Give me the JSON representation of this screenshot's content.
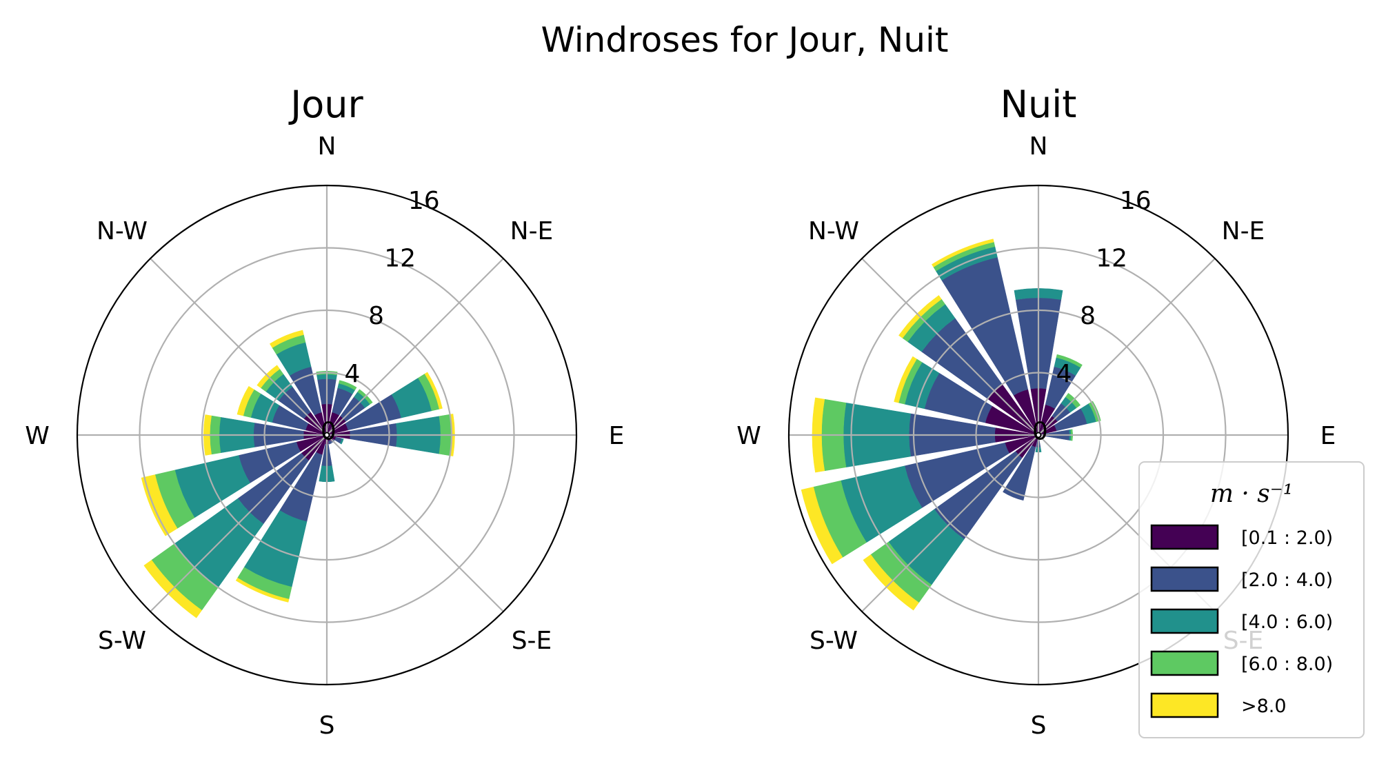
{
  "suptitle": "Windroses for Jour, Nuit",
  "palette": {
    "bins": [
      "#440154",
      "#3b528b",
      "#21918c",
      "#5ec962",
      "#fde725"
    ],
    "grid": "#b0b0b0",
    "frame": "#000000"
  },
  "legend": {
    "title": "m · s⁻¹",
    "entries": [
      "[0.1 : 2.0)",
      "[2.0 : 4.0)",
      "[4.0 : 6.0)",
      "[6.0 : 8.0)",
      ">8.0"
    ]
  },
  "chart_data": [
    {
      "type": "windrose",
      "title": "Jour",
      "direction_labels": [
        "N",
        "N-E",
        "E",
        "S-E",
        "S",
        "S-W",
        "W",
        "N-W"
      ],
      "r_ticks": [
        "0",
        "4",
        "8",
        "12",
        "16"
      ],
      "rlim": [
        0,
        16
      ],
      "directions_deg": [
        0,
        22.5,
        45,
        67.5,
        90,
        112.5,
        135,
        157.5,
        180,
        202.5,
        225,
        247.5,
        270,
        292.5,
        315,
        337.5
      ],
      "series": [
        {
          "name": "[0.1 : 2.0)",
          "values": [
            2.0,
            1.5,
            1.5,
            1.4,
            1.5,
            0.6,
            0.5,
            0.4,
            0.6,
            1.3,
            2.0,
            2.0,
            1.5,
            1.4,
            1.8,
            1.5
          ]
        },
        {
          "name": "[2.0 : 4.0)",
          "values": [
            1.6,
            1.6,
            1.5,
            3.5,
            3.0,
            0.4,
            0.1,
            0.2,
            1.4,
            4.4,
            5.0,
            3.8,
            3.2,
            2.2,
            2.0,
            3.0
          ]
        },
        {
          "name": "[4.0 : 6.0)",
          "values": [
            0.3,
            0.3,
            0.4,
            2.0,
            2.8,
            0.1,
            0.0,
            0.0,
            1.0,
            4.3,
            5.0,
            4.2,
            2.2,
            1.4,
            1.0,
            1.6
          ]
        },
        {
          "name": "[6.0 : 8.0)",
          "values": [
            0.2,
            0.2,
            0.2,
            0.5,
            0.7,
            0.0,
            0.0,
            0.0,
            0.0,
            0.8,
            1.8,
            1.3,
            0.6,
            0.5,
            0.4,
            0.5
          ]
        },
        {
          "name": ">8.0",
          "values": [
            0.0,
            0.0,
            0.0,
            0.2,
            0.2,
            0.0,
            0.0,
            0.0,
            0.0,
            0.2,
            0.6,
            0.9,
            0.4,
            0.4,
            0.3,
            0.3
          ]
        }
      ]
    },
    {
      "type": "windrose",
      "title": "Nuit",
      "direction_labels": [
        "N",
        "N-E",
        "E",
        "S-E",
        "S",
        "S-W",
        "W",
        "N-W"
      ],
      "r_ticks": [
        "0",
        "4",
        "8",
        "12",
        "16"
      ],
      "rlim": [
        0,
        16
      ],
      "directions_deg": [
        0,
        22.5,
        45,
        67.5,
        90,
        112.5,
        135,
        157.5,
        180,
        202.5,
        225,
        247.5,
        270,
        292.5,
        315,
        337.5
      ],
      "series": [
        {
          "name": "[0.1 : 2.0)",
          "values": [
            3.0,
            2.0,
            1.5,
            1.2,
            0.5,
            0.2,
            0.0,
            0.0,
            0.2,
            0.8,
            1.8,
            2.2,
            2.8,
            3.5,
            4.0,
            3.0
          ]
        },
        {
          "name": "[2.0 : 4.0)",
          "values": [
            5.8,
            2.5,
            1.0,
            2.0,
            1.5,
            0.0,
            0.0,
            0.0,
            0.6,
            3.5,
            6.4,
            6.6,
            5.5,
            4.0,
            5.2,
            8.7
          ]
        },
        {
          "name": "[4.0 : 6.0)",
          "values": [
            0.6,
            0.6,
            0.5,
            0.6,
            0.1,
            0.0,
            0.0,
            0.0,
            0.3,
            0.0,
            3.6,
            4.2,
            4.2,
            1.3,
            1.1,
            0.7
          ]
        },
        {
          "name": "[6.0 : 8.0)",
          "values": [
            0.0,
            0.2,
            0.3,
            0.3,
            0.1,
            0.0,
            0.0,
            0.0,
            0.0,
            0.0,
            1.4,
            1.8,
            1.4,
            0.4,
            0.4,
            0.3
          ]
        },
        {
          "name": ">8.0",
          "values": [
            0.0,
            0.0,
            0.0,
            0.0,
            0.0,
            0.0,
            0.0,
            0.0,
            0.0,
            0.0,
            0.6,
            0.8,
            0.6,
            0.3,
            0.3,
            0.2
          ]
        }
      ]
    }
  ]
}
